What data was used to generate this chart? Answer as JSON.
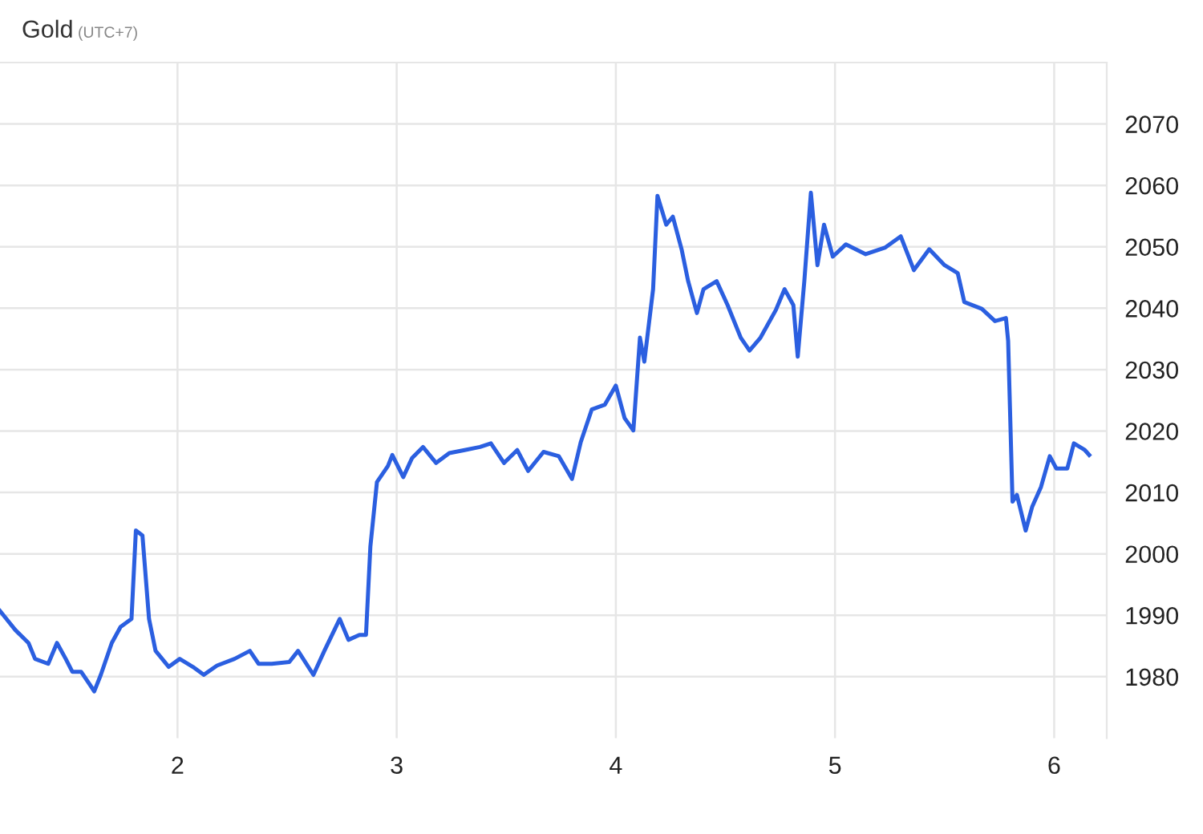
{
  "chart_data": {
    "type": "line",
    "title": "Gold",
    "subtitle": "(UTC+7)",
    "xlim": [
      1.19,
      6.24
    ],
    "ylim": [
      1970,
      2080
    ],
    "xticks": [
      2,
      3,
      4,
      5,
      6
    ],
    "yticks": [
      1980,
      1990,
      2000,
      2010,
      2020,
      2030,
      2040,
      2050,
      2060,
      2070
    ],
    "grid": true,
    "marker": "none",
    "line_style": "solid",
    "series": [
      {
        "color": "#2b5fe0",
        "x": [
          1.19,
          1.26,
          1.32,
          1.35,
          1.41,
          1.45,
          1.49,
          1.52,
          1.56,
          1.6,
          1.62,
          1.65,
          1.7,
          1.74,
          1.79,
          1.81,
          1.84,
          1.87,
          1.9,
          1.96,
          2.01,
          2.07,
          2.12,
          2.18,
          2.26,
          2.33,
          2.37,
          2.43,
          2.51,
          2.55,
          2.62,
          2.67,
          2.74,
          2.78,
          2.83,
          2.86,
          2.88,
          2.91,
          2.96,
          2.98,
          3.03,
          3.07,
          3.12,
          3.18,
          3.24,
          3.31,
          3.38,
          3.43,
          3.49,
          3.55,
          3.6,
          3.67,
          3.74,
          3.8,
          3.84,
          3.89,
          3.95,
          4.0,
          4.04,
          4.08,
          4.11,
          4.13,
          4.17,
          4.19,
          4.23,
          4.26,
          4.3,
          4.33,
          4.37,
          4.4,
          4.46,
          4.51,
          4.57,
          4.61,
          4.66,
          4.73,
          4.77,
          4.81,
          4.83,
          4.86,
          4.89,
          4.92,
          4.95,
          4.99,
          5.05,
          5.14,
          5.23,
          5.3,
          5.36,
          5.43,
          5.5,
          5.56,
          5.59,
          5.67,
          5.73,
          5.78,
          5.79,
          5.81,
          5.83,
          5.87,
          5.9,
          5.94,
          5.98,
          6.01,
          6.06,
          6.09,
          6.14,
          6.16
        ],
        "values": [
          1990.7,
          1987.6,
          1985.5,
          1982.9,
          1982.1,
          1985.5,
          1982.9,
          1980.8,
          1980.8,
          1978.7,
          1977.6,
          1980.3,
          1985.5,
          1988.1,
          1989.4,
          2003.8,
          2003.0,
          1989.4,
          1984.2,
          1981.6,
          1982.9,
          1981.6,
          1980.3,
          1981.8,
          1982.9,
          1984.2,
          1982.1,
          1982.1,
          1982.4,
          1984.2,
          1980.3,
          1984.2,
          1989.4,
          1986.0,
          1986.8,
          1986.8,
          2001.2,
          2011.7,
          2014.3,
          2016.1,
          2012.5,
          2015.6,
          2017.4,
          2014.8,
          2016.4,
          2016.9,
          2017.4,
          2018.0,
          2014.8,
          2016.9,
          2013.5,
          2016.6,
          2015.9,
          2012.2,
          2018.2,
          2023.5,
          2024.3,
          2027.4,
          2022.1,
          2020.1,
          2035.2,
          2031.3,
          2043.1,
          2058.3,
          2053.6,
          2054.9,
          2049.6,
          2044.4,
          2039.2,
          2043.1,
          2044.4,
          2040.5,
          2035.2,
          2033.1,
          2035.2,
          2039.7,
          2043.1,
          2040.5,
          2032.1,
          2044.4,
          2058.8,
          2047.0,
          2053.6,
          2048.4,
          2050.4,
          2048.8,
          2049.9,
          2051.7,
          2046.2,
          2049.6,
          2047.0,
          2045.7,
          2041.0,
          2039.9,
          2037.9,
          2038.4,
          2034.7,
          2008.5,
          2009.6,
          2003.8,
          2007.7,
          2010.9,
          2015.9,
          2013.9,
          2013.9,
          2018.0,
          2016.9,
          2016.1
        ]
      }
    ]
  }
}
